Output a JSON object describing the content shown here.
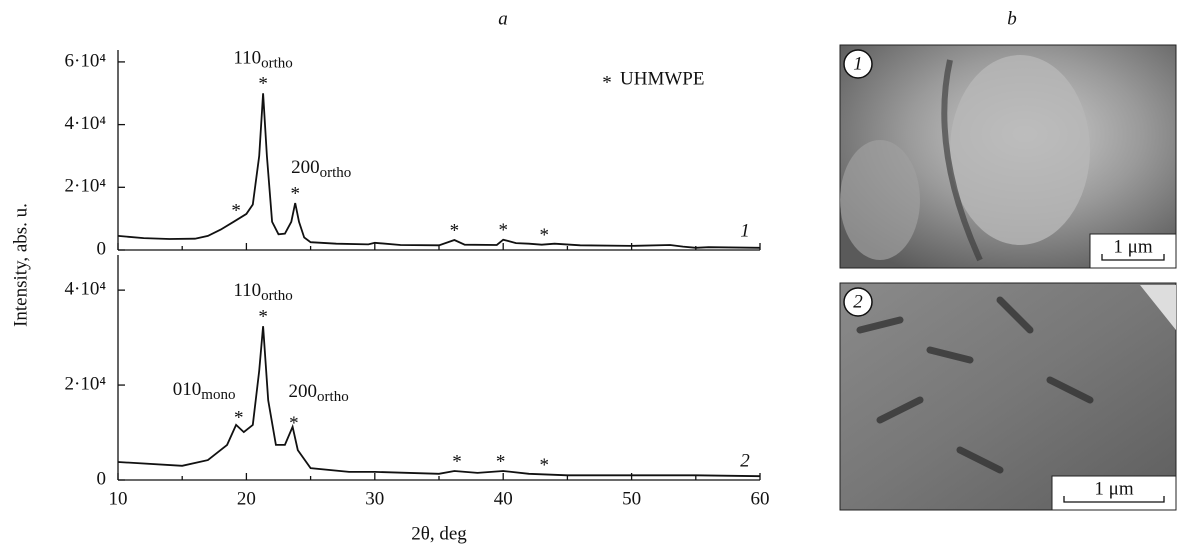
{
  "panel_labels": [
    "a",
    "b"
  ],
  "chart_data": [
    {
      "type": "line",
      "ylabel": "Intensity, abs. u.",
      "xlim": [
        10,
        60
      ],
      "ylim": [
        0,
        63800
      ],
      "yticks": [
        0,
        {
          "value": 20000,
          "label": "2·10⁴"
        },
        {
          "value": 40000,
          "label": "4·10⁴"
        },
        {
          "value": 60000,
          "label": "6·10⁴"
        }
      ],
      "x": [
        10,
        12,
        14,
        16,
        17,
        18,
        19,
        20,
        20.5,
        21,
        21.3,
        21.6,
        22,
        22.5,
        23,
        23.5,
        23.8,
        24.1,
        24.5,
        25,
        27,
        29.5,
        30,
        32,
        35,
        36.2,
        37,
        39.5,
        40,
        41,
        42,
        43,
        44,
        46,
        50,
        53,
        54,
        55,
        56,
        60
      ],
      "series": [
        {
          "name": "1",
          "color": "#111111",
          "values": [
            4500,
            3800,
            3500,
            3600,
            4500,
            6500,
            9000,
            11500,
            14500,
            30000,
            50000,
            30000,
            9000,
            5000,
            5200,
            9000,
            15000,
            9000,
            4000,
            2500,
            2000,
            1800,
            2300,
            1600,
            1500,
            3200,
            1700,
            1600,
            3300,
            2200,
            2000,
            1700,
            2000,
            1500,
            1300,
            1600,
            1100,
            700,
            900,
            700
          ]
        }
      ],
      "marker": "*",
      "peak_markers": [
        19.2,
        21.3,
        23.8,
        36.2,
        40,
        43.2
      ],
      "annotations": [
        {
          "text": "110",
          "sub": "ortho",
          "x": 21.3
        },
        {
          "text": "200",
          "sub": "ortho",
          "x": 23.8
        }
      ],
      "legend": {
        "marker": "*",
        "label": "UHMWPE"
      }
    },
    {
      "type": "line",
      "xlabel": "2θ, deg",
      "xlim": [
        10,
        60
      ],
      "ylim": [
        0,
        47400
      ],
      "xticks": [
        10,
        20,
        30,
        40,
        50,
        60
      ],
      "yticks": [
        0,
        {
          "value": 20000,
          "label": "2·10⁴"
        },
        {
          "value": 40000,
          "label": "4·10⁴"
        }
      ],
      "x": [
        10,
        15,
        17,
        18.5,
        19.2,
        19.8,
        20.5,
        21,
        21.3,
        21.7,
        22.3,
        23,
        23.6,
        24,
        25,
        28,
        30,
        35,
        36.2,
        38,
        40,
        42,
        45,
        55,
        60
      ],
      "series": [
        {
          "name": "2",
          "color": "#111111",
          "values": [
            3800,
            3000,
            4200,
            7400,
            11600,
            10100,
            11600,
            23000,
            32400,
            16800,
            7400,
            7400,
            11200,
            6300,
            2500,
            1700,
            1700,
            1300,
            1900,
            1500,
            1900,
            1300,
            1000,
            1000,
            800
          ]
        }
      ],
      "marker": "*",
      "peak_markers": [
        19.4,
        21.3,
        23.7,
        36.4,
        39.8,
        43.2
      ],
      "annotations": [
        {
          "text": "010",
          "sub": "mono",
          "x": 19.2
        },
        {
          "text": "110",
          "sub": "ortho",
          "x": 21.3
        },
        {
          "text": "200",
          "sub": "ortho",
          "x": 23.6
        }
      ]
    }
  ],
  "micrographs": [
    {
      "label": "1",
      "scale_bar": "1 μm"
    },
    {
      "label": "2",
      "scale_bar": "1 μm"
    }
  ]
}
